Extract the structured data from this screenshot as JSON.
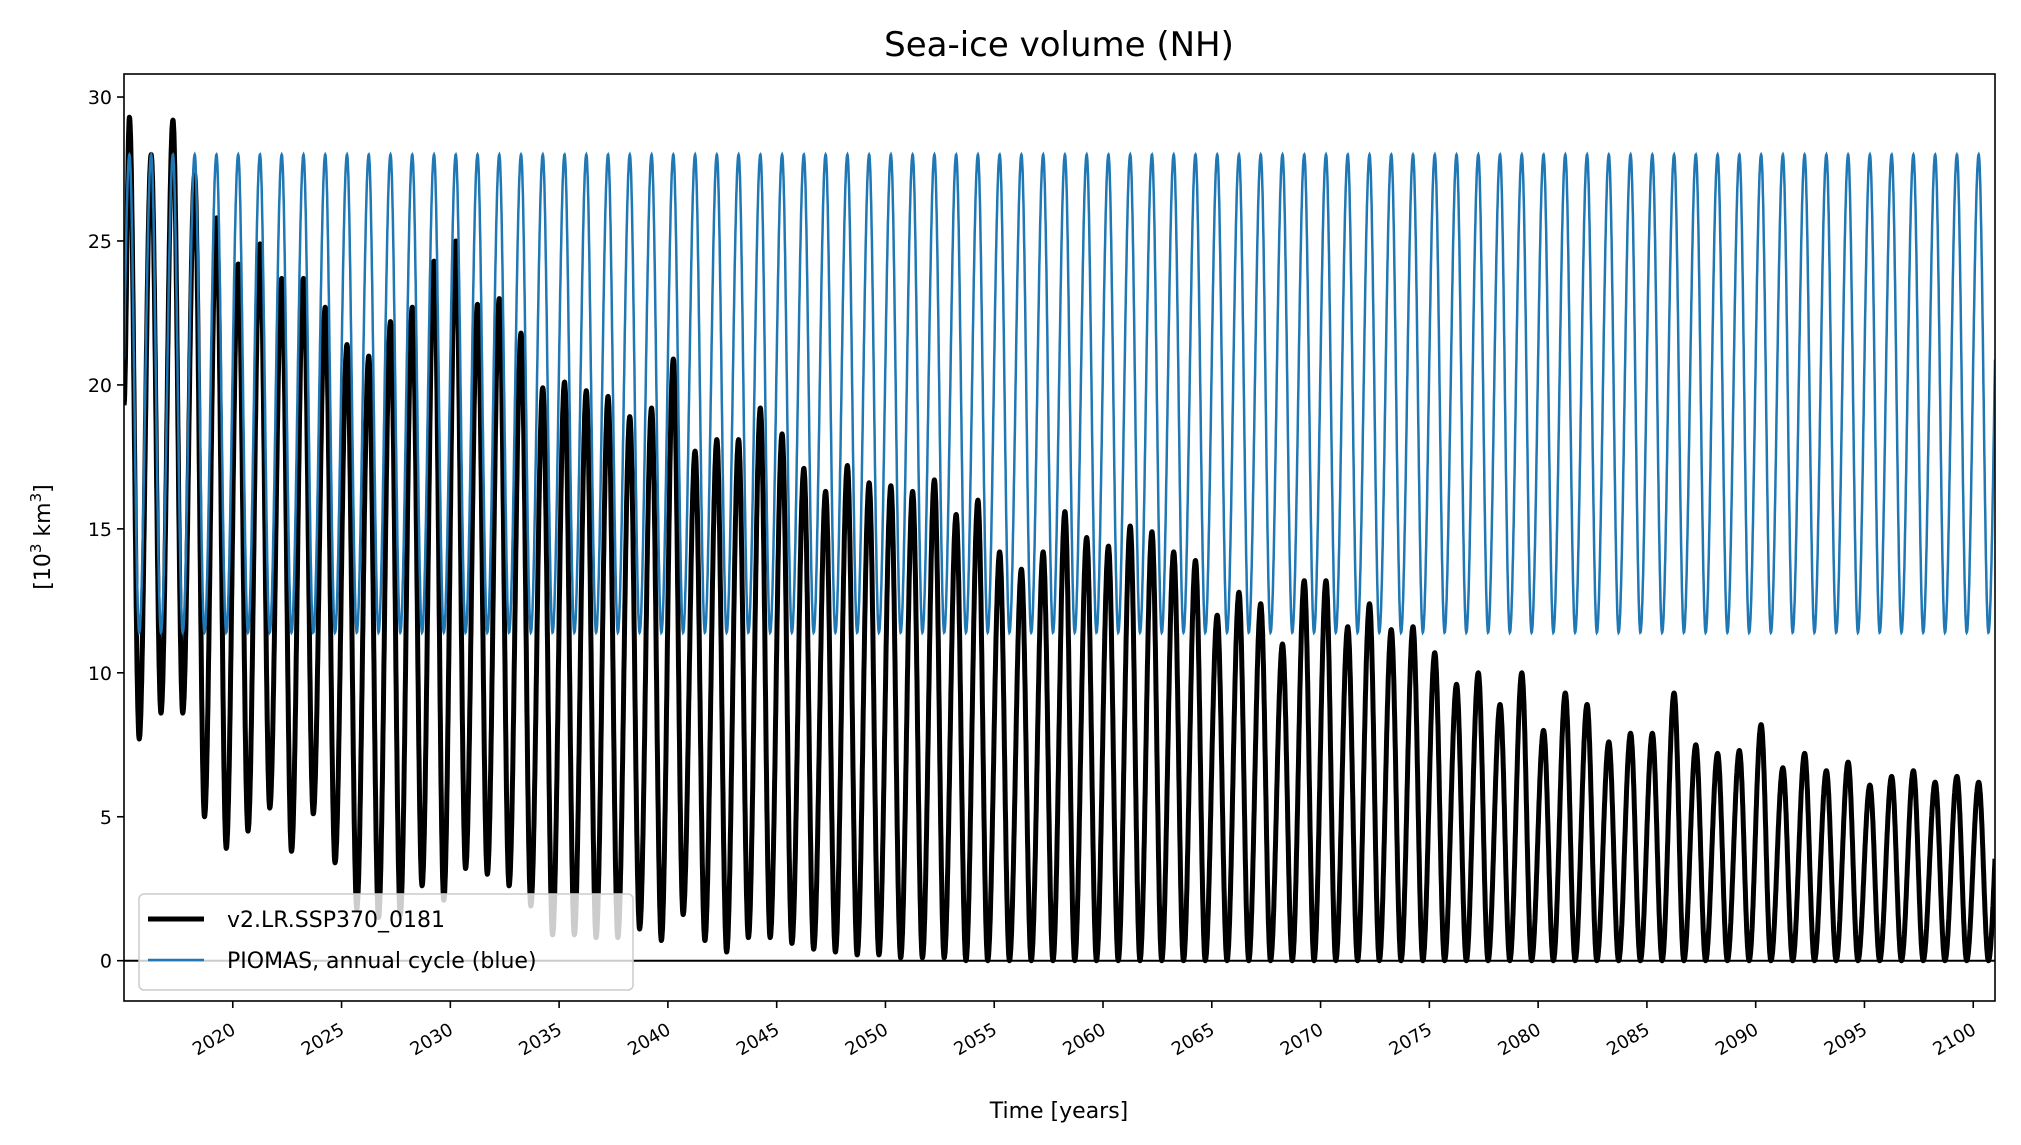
{
  "chart_data": {
    "type": "line",
    "title": "Sea-ice volume (NH)",
    "xlabel": "Time [years]",
    "ylabel_base": "[10",
    "ylabel_sup": "3",
    "ylabel_unit": " km",
    "ylabel_unit_sup": "3",
    "ylabel_end": "]",
    "xlim": [
      2015,
      2101
    ],
    "ylim": [
      -1.4,
      30.8
    ],
    "xticks": [
      "2020",
      "2025",
      "2030",
      "2035",
      "2040",
      "2045",
      "2050",
      "2055",
      "2060",
      "2065",
      "2070",
      "2075",
      "2080",
      "2085",
      "2090",
      "2095",
      "2100"
    ],
    "yticks": [
      "0",
      "5",
      "10",
      "15",
      "20",
      "25",
      "30"
    ],
    "grid": false,
    "legend_position": "lower-left",
    "series": [
      {
        "name": "v2.LR.SSP370_0181",
        "color": "#000000",
        "start_value": 19.3,
        "years": [
          2015,
          2016,
          2017,
          2018,
          2019,
          2020,
          2021,
          2022,
          2023,
          2024,
          2025,
          2026,
          2027,
          2028,
          2029,
          2030,
          2031,
          2032,
          2033,
          2034,
          2035,
          2036,
          2037,
          2038,
          2039,
          2040,
          2041,
          2042,
          2043,
          2044,
          2045,
          2046,
          2047,
          2048,
          2049,
          2050,
          2051,
          2052,
          2053,
          2054,
          2055,
          2056,
          2057,
          2058,
          2059,
          2060,
          2061,
          2062,
          2063,
          2064,
          2065,
          2066,
          2067,
          2068,
          2069,
          2070,
          2071,
          2072,
          2073,
          2074,
          2075,
          2076,
          2077,
          2078,
          2079,
          2080,
          2081,
          2082,
          2083,
          2084,
          2085,
          2086,
          2087,
          2088,
          2089,
          2090,
          2091,
          2092,
          2093,
          2094,
          2095,
          2096,
          2097,
          2098,
          2099,
          2100
        ],
        "annual_max": [
          29.3,
          28.0,
          29.2,
          27.3,
          25.8,
          24.2,
          24.9,
          23.7,
          23.7,
          22.7,
          21.4,
          21.0,
          22.2,
          22.7,
          24.3,
          25.0,
          22.8,
          23.0,
          21.8,
          19.9,
          20.1,
          19.8,
          19.6,
          18.9,
          19.2,
          20.9,
          17.7,
          18.1,
          18.1,
          19.2,
          18.3,
          17.1,
          16.3,
          17.2,
          16.6,
          16.5,
          16.3,
          16.7,
          15.5,
          16.0,
          14.2,
          13.6,
          14.2,
          15.6,
          14.7,
          14.4,
          15.1,
          14.9,
          14.2,
          13.9,
          12.0,
          12.8,
          12.4,
          11.0,
          13.2,
          13.2,
          11.6,
          12.4,
          11.5,
          11.6,
          10.7,
          9.6,
          10.0,
          8.9,
          10.0,
          8.0,
          9.3,
          8.9,
          7.6,
          7.9,
          7.9,
          9.3,
          7.5,
          7.2,
          7.3,
          8.2,
          6.7,
          7.2,
          6.6,
          6.9,
          6.1,
          6.4,
          6.6,
          6.2,
          6.4,
          6.2
        ],
        "annual_min": [
          7.7,
          8.6,
          8.6,
          5.0,
          3.9,
          4.5,
          5.3,
          3.8,
          5.1,
          3.4,
          1.8,
          1.5,
          1.6,
          2.6,
          2.1,
          3.2,
          3.0,
          2.6,
          1.9,
          0.9,
          0.9,
          0.8,
          0.8,
          1.1,
          0.7,
          1.6,
          0.7,
          0.3,
          0.8,
          0.8,
          0.6,
          0.4,
          0.3,
          0.2,
          0.2,
          0.1,
          0.1,
          0.1,
          0.0,
          0.0,
          0.0,
          0.0,
          0.0,
          0.0,
          0.0,
          0.0,
          0.0,
          0.0,
          0.0,
          0.0,
          0.0,
          0.0,
          0.0,
          0.0,
          0.0,
          0.0,
          0.0,
          0.0,
          0.0,
          0.0,
          0.0,
          0.0,
          0.0,
          0.0,
          0.0,
          0.0,
          0.0,
          0.0,
          0.0,
          0.0,
          0.0,
          0.0,
          0.0,
          0.0,
          0.0,
          0.0,
          0.0,
          0.0,
          0.0,
          0.0,
          0.0,
          0.0,
          0.0,
          0.0,
          0.0,
          0.0
        ]
      },
      {
        "name": "PIOMAS, annual cycle (blue)",
        "color": "#1f77b4",
        "annual_max": 28.0,
        "annual_min": 11.4
      }
    ],
    "reference_line": {
      "y": 0,
      "color": "#000000"
    }
  }
}
